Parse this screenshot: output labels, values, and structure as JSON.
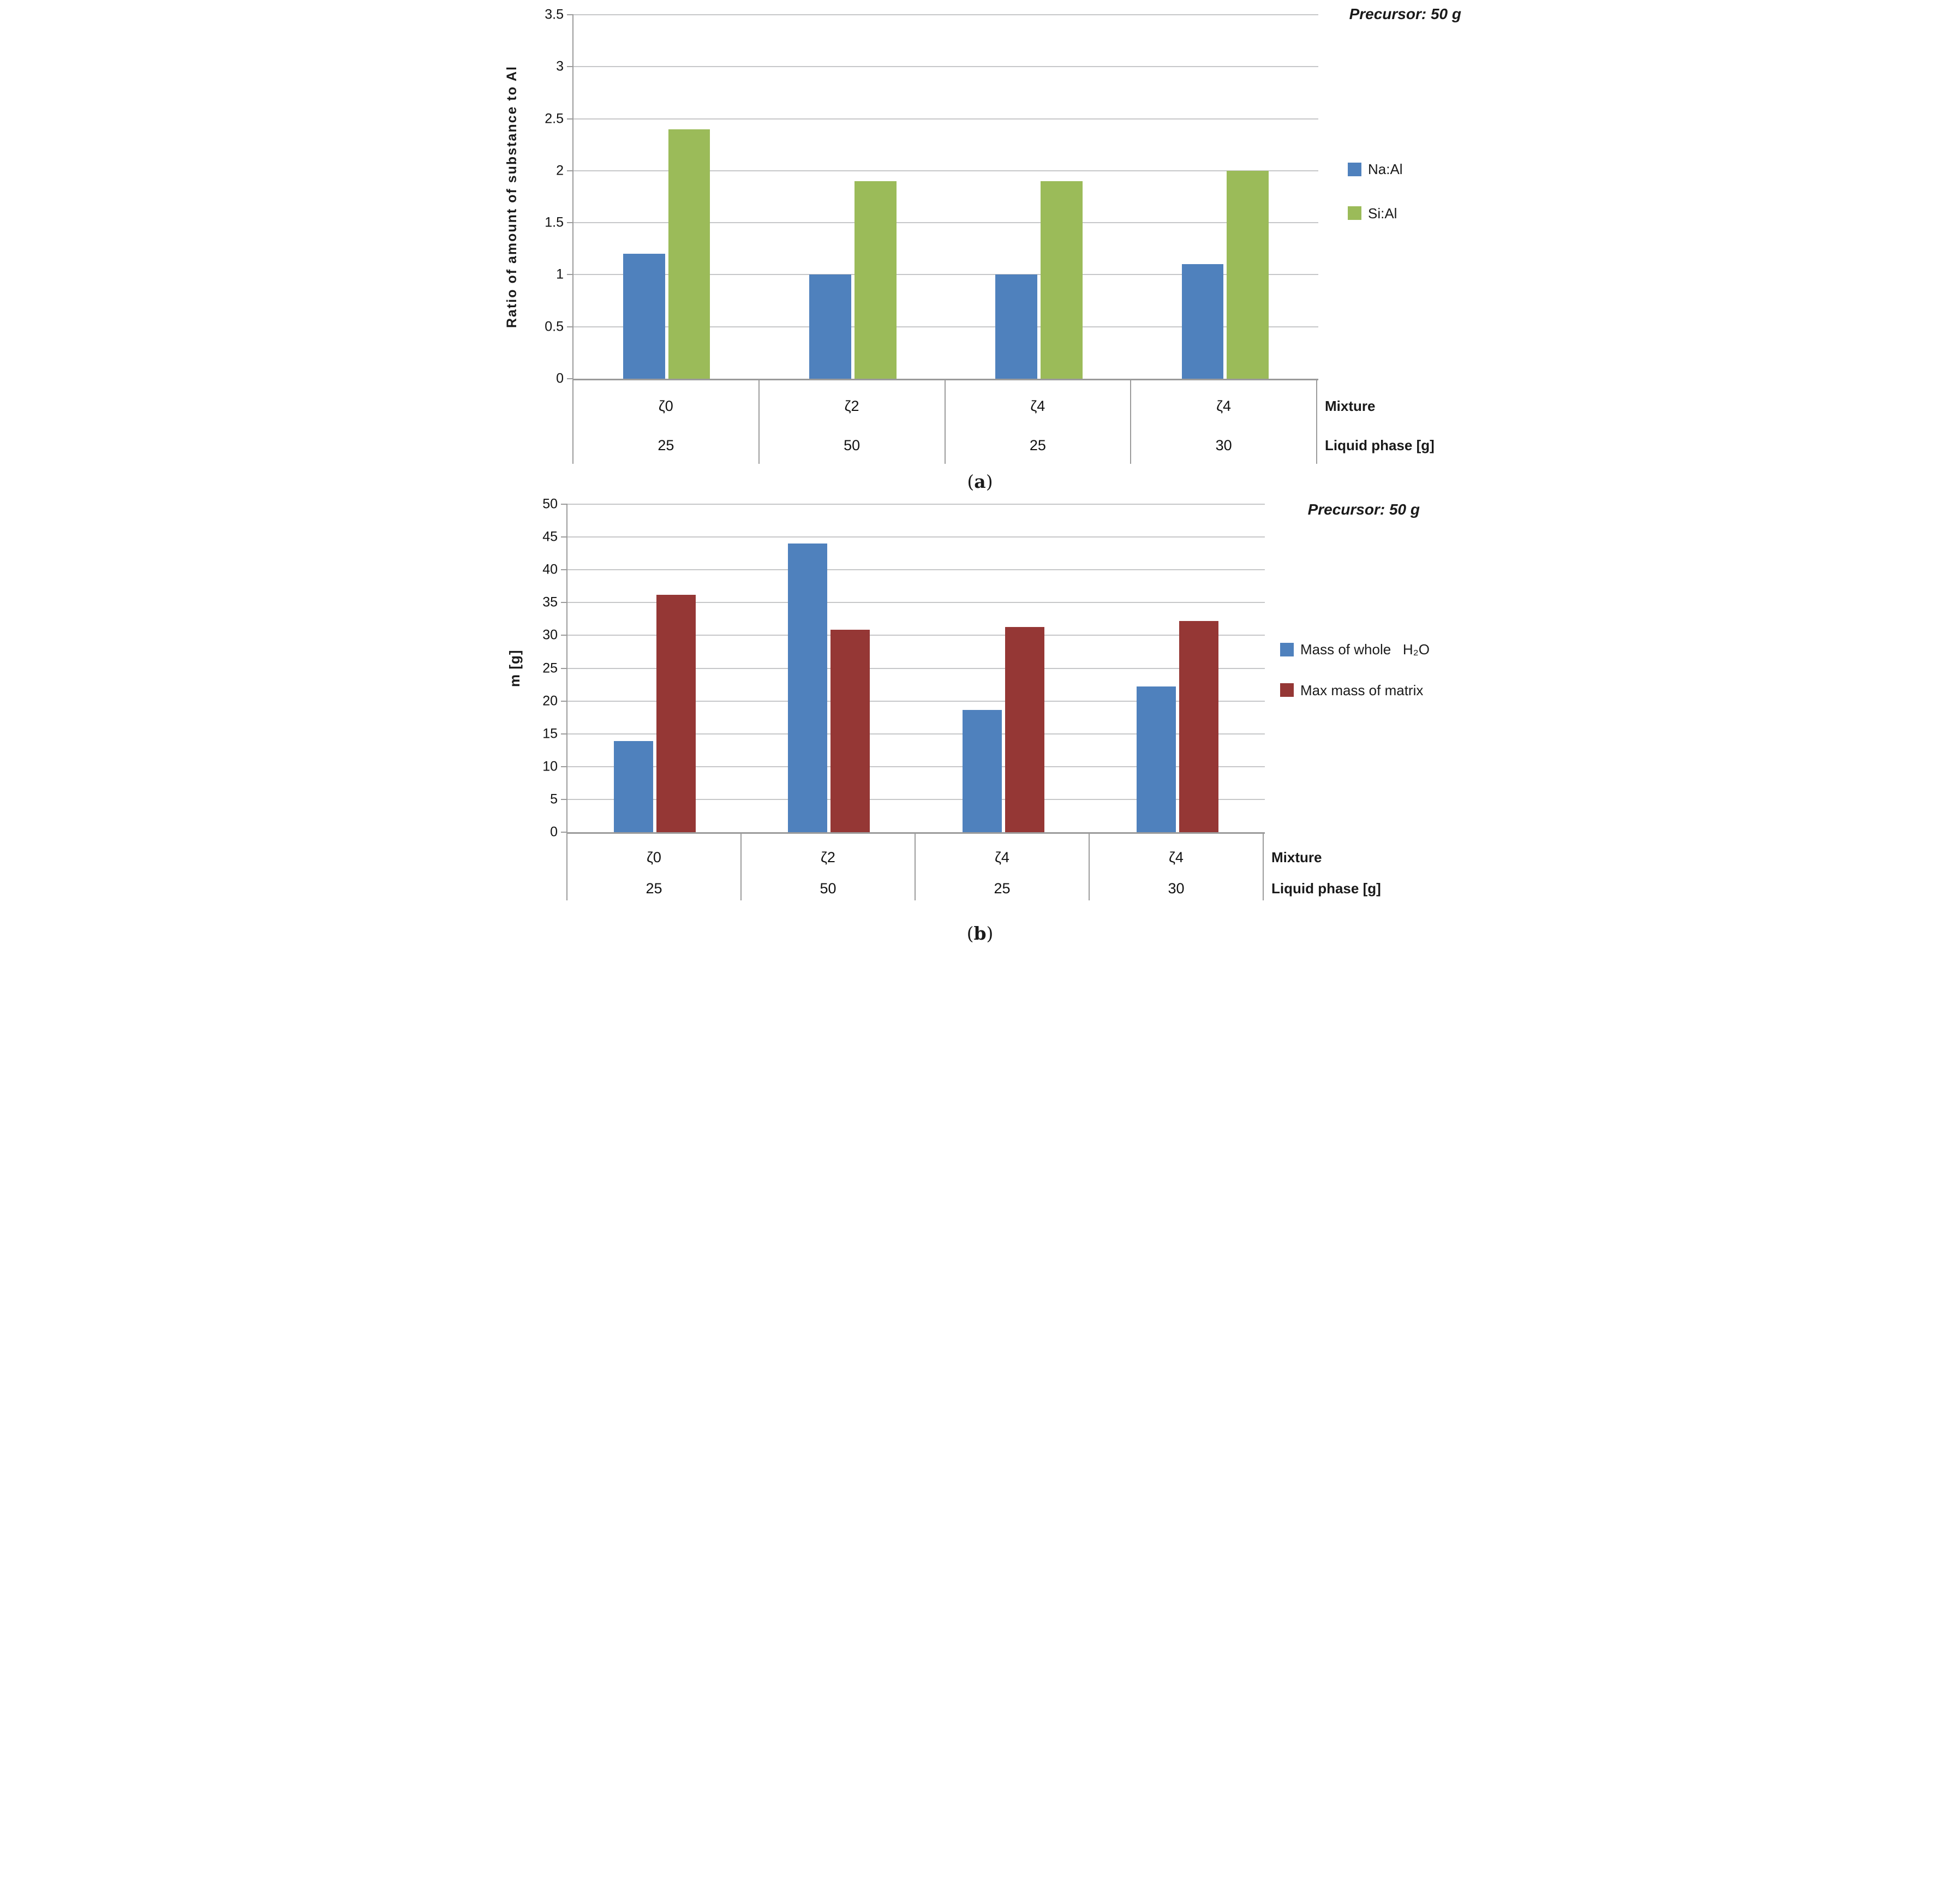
{
  "colors": {
    "series_blue": "#4F81BD",
    "series_green": "#9BBB59",
    "series_dark_red": "#953735",
    "gridline": "#C6C7C9",
    "axis": "#9B9B9B"
  },
  "chart_data": [
    {
      "type": "bar",
      "panel": "a",
      "title": "Precursor: 50 g",
      "ylabel": "Ratio of amount of substance to Al",
      "xlabel": "",
      "x_axis_note": [
        "Mixture",
        "Liquid phase [g]"
      ],
      "categories": [
        {
          "mixture": "ζ0",
          "liquid": "25"
        },
        {
          "mixture": "ζ2",
          "liquid": "50"
        },
        {
          "mixture": "ζ4",
          "liquid": "25"
        },
        {
          "mixture": "ζ4",
          "liquid": "30"
        }
      ],
      "series": [
        {
          "name": "Na:Al",
          "color": "#4F81BD",
          "values": [
            1.2,
            1.0,
            1.0,
            1.1
          ]
        },
        {
          "name": "Si:Al",
          "color": "#9BBB59",
          "values": [
            2.4,
            1.9,
            1.9,
            2.0
          ]
        }
      ],
      "ylim": [
        0,
        3.5
      ],
      "grid_step": 0.5,
      "ytick_labels": [
        "0",
        "0.5",
        "1",
        "1.5",
        "2",
        "2.5",
        "3",
        "3.5"
      ],
      "grid": true,
      "legend_position": "right",
      "caption": {
        "open": "(",
        "letter": "a",
        "close": ")"
      }
    },
    {
      "type": "bar",
      "panel": "b",
      "title": "Precursor: 50 g",
      "ylabel": "m [g]",
      "xlabel": "",
      "x_axis_note": [
        "Mixture",
        "Liquid phase [g]"
      ],
      "categories": [
        {
          "mixture": "ζ0",
          "liquid": "25"
        },
        {
          "mixture": "ζ2",
          "liquid": "50"
        },
        {
          "mixture": "ζ4",
          "liquid": "25"
        },
        {
          "mixture": "ζ4",
          "liquid": "30"
        }
      ],
      "series": [
        {
          "name": "Mass of whole   H₂O",
          "color": "#4F81BD",
          "values": [
            13.9,
            44.0,
            18.6,
            22.2
          ]
        },
        {
          "name": "Max mass of matrix",
          "color": "#953735",
          "values": [
            36.2,
            30.9,
            31.3,
            32.2
          ]
        }
      ],
      "ylim": [
        0,
        50
      ],
      "grid_step": 5,
      "ytick_labels": [
        "0",
        "5",
        "10",
        "15",
        "20",
        "25",
        "30",
        "35",
        "40",
        "45",
        "50"
      ],
      "grid": true,
      "legend_position": "right",
      "caption": {
        "open": "(",
        "letter": "b",
        "close": ")"
      }
    }
  ]
}
